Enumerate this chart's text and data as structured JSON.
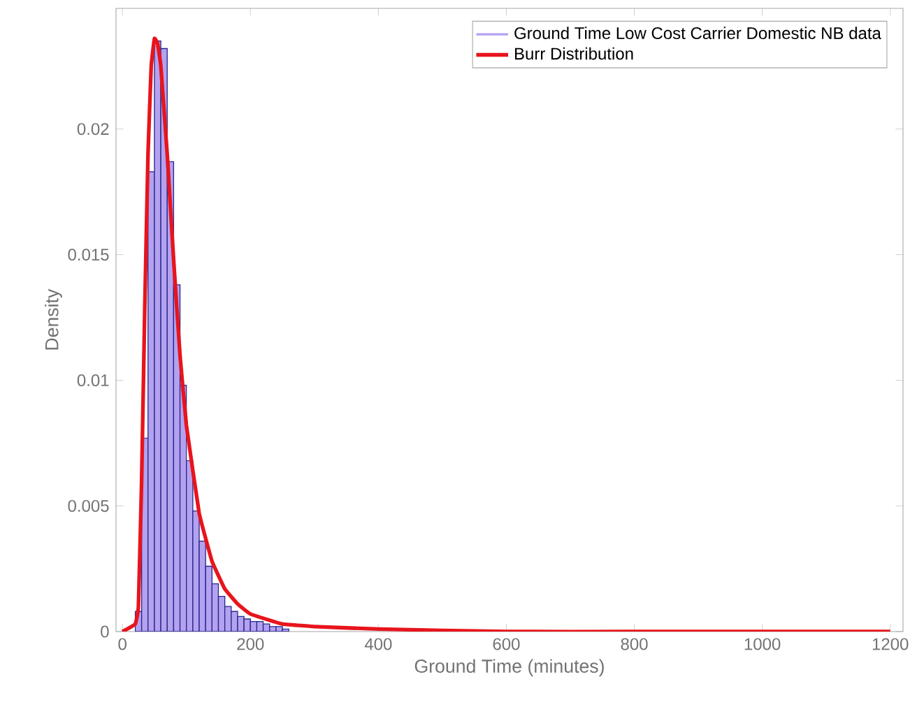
{
  "chart_data": {
    "type": "histogram",
    "xlabel": "Ground Time (minutes)",
    "ylabel": "Density",
    "xlim": [
      -10,
      1220
    ],
    "ylim": [
      0,
      0.0248
    ],
    "xticks": [
      0,
      200,
      400,
      600,
      800,
      1000,
      1200
    ],
    "yticks": [
      0,
      0.005,
      0.01,
      0.015,
      0.02
    ],
    "legend": "top right",
    "series": [
      {
        "name": "Ground Time Low Cost Carrier Domestic NB data",
        "type": "histogram",
        "color": "#b4a2f0",
        "bins": [
          20,
          30,
          40,
          50,
          60,
          70,
          80,
          90,
          100,
          110,
          120,
          130,
          140,
          150,
          160,
          170,
          180,
          190,
          200,
          210,
          220,
          230,
          240,
          250,
          260
        ],
        "values": [
          0.0008,
          0.0077,
          0.0183,
          0.0235,
          0.0232,
          0.0187,
          0.0138,
          0.0098,
          0.0068,
          0.0048,
          0.0036,
          0.0026,
          0.0019,
          0.0014,
          0.001,
          0.0008,
          0.0006,
          0.0005,
          0.0004,
          0.0004,
          0.0003,
          0.0002,
          0.0002,
          0.0001
        ]
      },
      {
        "name": "Burr Distribution",
        "type": "line",
        "color": "#e8141c",
        "x": [
          0,
          20,
          25,
          30,
          35,
          40,
          45,
          50,
          55,
          60,
          70,
          80,
          90,
          100,
          120,
          140,
          160,
          180,
          200,
          250,
          300,
          400,
          600,
          800,
          1000,
          1200
        ],
        "values": [
          0,
          0.0003,
          0.001,
          0.006,
          0.013,
          0.019,
          0.0225,
          0.0236,
          0.0234,
          0.0225,
          0.019,
          0.0148,
          0.011,
          0.0082,
          0.0047,
          0.0028,
          0.0017,
          0.0011,
          0.0007,
          0.0003,
          0.0002,
          0.0001,
          0,
          0,
          0,
          0
        ]
      }
    ]
  }
}
